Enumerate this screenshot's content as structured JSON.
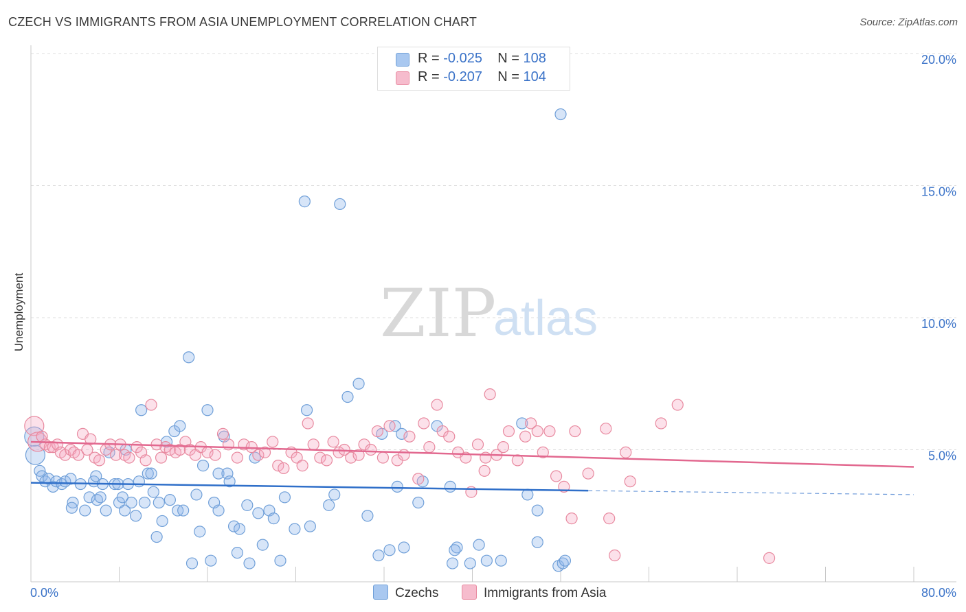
{
  "header": {
    "title": "CZECH VS IMMIGRANTS FROM ASIA UNEMPLOYMENT CORRELATION CHART",
    "source": "Source: ZipAtlas.com"
  },
  "watermark": {
    "zip": "ZIP",
    "atlas": "atlas"
  },
  "legend": {
    "rows": [
      {
        "r_label": "R = ",
        "r_value": "-0.025",
        "n_label": "N = ",
        "n_value": "108",
        "color": "#a9c8f0",
        "border": "#6f9fd8"
      },
      {
        "r_label": "R = ",
        "r_value": "-0.207",
        "n_label": "N = ",
        "n_value": "104",
        "color": "#f6bccd",
        "border": "#e8899f"
      }
    ]
  },
  "bottom_legend": [
    {
      "label": "Czechs",
      "color": "#a9c8f0",
      "border": "#6f9fd8"
    },
    {
      "label": "Immigrants from Asia",
      "color": "#f6bccd",
      "border": "#e8899f"
    }
  ],
  "colors": {
    "czech_fill": "rgba(140,180,235,0.35)",
    "czech_stroke": "#6f9fd8",
    "czech_line": "#2f6fc9",
    "asia_fill": "rgba(245,170,195,0.35)",
    "asia_stroke": "#e8899f",
    "asia_line": "#e2688f",
    "grid": "#dddddd",
    "tick_label": "#3b73c8"
  },
  "chart_data": {
    "type": "scatter",
    "title": "CZECH VS IMMIGRANTS FROM ASIA UNEMPLOYMENT CORRELATION CHART",
    "xlabel": "",
    "ylabel": "Unemployment",
    "xlim": [
      0,
      80
    ],
    "ylim": [
      0,
      20
    ],
    "x_tick_labels": [
      "0.0%",
      "80.0%"
    ],
    "y_ticks": [
      5,
      10,
      15,
      20
    ],
    "y_tick_labels": [
      "5.0%",
      "10.0%",
      "15.0%",
      "20.0%"
    ],
    "grid": true,
    "legend_position": "top-center",
    "series": [
      {
        "name": "Czechs",
        "r": -0.025,
        "n": 108,
        "trend": {
          "x": [
            0,
            50.5
          ],
          "y": [
            3.75,
            3.45
          ],
          "dashed_to": [
            80,
            3.3
          ]
        },
        "points": [
          [
            0.3,
            5.5
          ],
          [
            0.4,
            4.8
          ],
          [
            0.8,
            4.2
          ],
          [
            1.0,
            4.0
          ],
          [
            1.3,
            3.8
          ],
          [
            1.6,
            3.9
          ],
          [
            2.0,
            3.6
          ],
          [
            2.3,
            3.8
          ],
          [
            2.8,
            3.7
          ],
          [
            3.1,
            3.8
          ],
          [
            3.6,
            3.9
          ],
          [
            3.8,
            3.0
          ],
          [
            3.7,
            2.8
          ],
          [
            4.5,
            3.7
          ],
          [
            4.9,
            2.7
          ],
          [
            5.3,
            3.2
          ],
          [
            5.7,
            3.8
          ],
          [
            5.9,
            4.0
          ],
          [
            6.0,
            3.1
          ],
          [
            6.3,
            3.2
          ],
          [
            6.5,
            3.7
          ],
          [
            6.8,
            2.7
          ],
          [
            7.1,
            4.9
          ],
          [
            7.6,
            3.7
          ],
          [
            7.9,
            3.7
          ],
          [
            8.0,
            3.0
          ],
          [
            8.3,
            3.2
          ],
          [
            8.5,
            2.7
          ],
          [
            8.6,
            5.0
          ],
          [
            8.8,
            3.7
          ],
          [
            9.1,
            3.0
          ],
          [
            9.5,
            2.5
          ],
          [
            9.8,
            3.8
          ],
          [
            10.0,
            6.5
          ],
          [
            10.3,
            3.0
          ],
          [
            10.6,
            4.1
          ],
          [
            10.9,
            4.1
          ],
          [
            11.1,
            3.4
          ],
          [
            11.4,
            1.7
          ],
          [
            11.6,
            3.0
          ],
          [
            11.9,
            2.3
          ],
          [
            12.3,
            5.3
          ],
          [
            12.6,
            3.1
          ],
          [
            13.0,
            5.7
          ],
          [
            13.3,
            2.7
          ],
          [
            13.5,
            5.9
          ],
          [
            13.8,
            2.7
          ],
          [
            14.3,
            8.5
          ],
          [
            14.6,
            0.7
          ],
          [
            15.0,
            3.3
          ],
          [
            15.3,
            1.9
          ],
          [
            15.6,
            4.4
          ],
          [
            16.0,
            6.5
          ],
          [
            16.3,
            0.8
          ],
          [
            16.6,
            3.0
          ],
          [
            17.0,
            4.1
          ],
          [
            17.0,
            2.7
          ],
          [
            17.5,
            5.5
          ],
          [
            17.8,
            4.1
          ],
          [
            18.0,
            3.8
          ],
          [
            18.4,
            2.1
          ],
          [
            18.7,
            1.1
          ],
          [
            18.9,
            2.0
          ],
          [
            19.6,
            2.9
          ],
          [
            19.8,
            0.7
          ],
          [
            20.3,
            4.7
          ],
          [
            20.6,
            2.6
          ],
          [
            21.0,
            1.4
          ],
          [
            21.6,
            2.7
          ],
          [
            22.0,
            2.4
          ],
          [
            22.6,
            0.8
          ],
          [
            23.0,
            3.2
          ],
          [
            23.9,
            2.0
          ],
          [
            24.8,
            14.4
          ],
          [
            25.0,
            6.5
          ],
          [
            25.3,
            2.1
          ],
          [
            27.0,
            2.9
          ],
          [
            27.5,
            3.3
          ],
          [
            28.0,
            14.3
          ],
          [
            28.7,
            7.0
          ],
          [
            29.7,
            7.5
          ],
          [
            30.5,
            2.5
          ],
          [
            31.5,
            1.0
          ],
          [
            31.8,
            5.6
          ],
          [
            32.5,
            1.2
          ],
          [
            33.2,
            3.6
          ],
          [
            33.6,
            5.6
          ],
          [
            33.8,
            1.3
          ],
          [
            35.1,
            3.0
          ],
          [
            35.5,
            3.8
          ],
          [
            36.8,
            5.9
          ],
          [
            38.2,
            0.7
          ],
          [
            38.0,
            3.6
          ],
          [
            38.6,
            1.3
          ],
          [
            39.8,
            0.7
          ],
          [
            40.6,
            1.4
          ],
          [
            41.3,
            0.8
          ],
          [
            42.6,
            0.8
          ],
          [
            44.5,
            6.0
          ],
          [
            45.0,
            3.3
          ],
          [
            45.9,
            1.5
          ],
          [
            45.9,
            2.7
          ],
          [
            47.8,
            0.6
          ],
          [
            48.0,
            17.7
          ],
          [
            48.2,
            0.7
          ],
          [
            48.4,
            0.8
          ],
          [
            38.4,
            1.2
          ],
          [
            33.0,
            5.9
          ]
        ]
      },
      {
        "name": "Immigrants from Asia",
        "r": -0.207,
        "n": 104,
        "trend": {
          "x": [
            0,
            80
          ],
          "y": [
            5.3,
            4.35
          ]
        },
        "points": [
          [
            0.3,
            5.9
          ],
          [
            0.6,
            5.3
          ],
          [
            1.0,
            5.5
          ],
          [
            1.3,
            5.2
          ],
          [
            1.7,
            5.1
          ],
          [
            2.0,
            5.1
          ],
          [
            2.4,
            5.2
          ],
          [
            2.7,
            4.9
          ],
          [
            3.1,
            4.8
          ],
          [
            3.6,
            5.0
          ],
          [
            3.9,
            4.9
          ],
          [
            4.3,
            4.8
          ],
          [
            4.7,
            5.6
          ],
          [
            5.1,
            5.0
          ],
          [
            5.4,
            5.4
          ],
          [
            5.8,
            4.7
          ],
          [
            6.2,
            4.6
          ],
          [
            6.8,
            5.0
          ],
          [
            7.2,
            5.2
          ],
          [
            7.7,
            4.8
          ],
          [
            8.1,
            5.2
          ],
          [
            8.5,
            4.8
          ],
          [
            8.9,
            4.7
          ],
          [
            9.6,
            5.1
          ],
          [
            10.0,
            4.9
          ],
          [
            10.4,
            4.6
          ],
          [
            10.9,
            6.7
          ],
          [
            11.4,
            5.2
          ],
          [
            11.8,
            4.7
          ],
          [
            12.2,
            5.1
          ],
          [
            12.6,
            5.0
          ],
          [
            13.1,
            4.9
          ],
          [
            13.5,
            5.0
          ],
          [
            14.0,
            5.3
          ],
          [
            14.4,
            5.0
          ],
          [
            14.9,
            4.8
          ],
          [
            15.4,
            5.1
          ],
          [
            16.0,
            4.9
          ],
          [
            16.7,
            4.8
          ],
          [
            17.4,
            5.6
          ],
          [
            17.9,
            5.2
          ],
          [
            18.7,
            4.7
          ],
          [
            19.3,
            5.2
          ],
          [
            20.0,
            5.1
          ],
          [
            20.6,
            4.8
          ],
          [
            21.2,
            4.9
          ],
          [
            21.9,
            5.3
          ],
          [
            22.4,
            4.4
          ],
          [
            22.9,
            4.3
          ],
          [
            23.6,
            4.9
          ],
          [
            24.1,
            4.7
          ],
          [
            24.6,
            4.4
          ],
          [
            25.1,
            6.0
          ],
          [
            25.6,
            5.2
          ],
          [
            26.2,
            4.7
          ],
          [
            26.8,
            4.6
          ],
          [
            27.4,
            5.3
          ],
          [
            27.9,
            4.9
          ],
          [
            28.4,
            5.0
          ],
          [
            29.0,
            4.7
          ],
          [
            29.7,
            4.8
          ],
          [
            30.2,
            5.2
          ],
          [
            30.8,
            5.0
          ],
          [
            31.4,
            5.7
          ],
          [
            31.9,
            4.7
          ],
          [
            32.5,
            5.9
          ],
          [
            33.2,
            4.6
          ],
          [
            33.8,
            4.8
          ],
          [
            34.3,
            5.5
          ],
          [
            35.1,
            3.9
          ],
          [
            35.6,
            6.0
          ],
          [
            36.1,
            5.1
          ],
          [
            36.8,
            6.7
          ],
          [
            37.3,
            5.7
          ],
          [
            37.9,
            5.5
          ],
          [
            38.7,
            4.9
          ],
          [
            39.4,
            4.7
          ],
          [
            39.9,
            3.4
          ],
          [
            40.5,
            5.2
          ],
          [
            41.1,
            4.2
          ],
          [
            41.6,
            7.1
          ],
          [
            42.2,
            4.8
          ],
          [
            42.8,
            5.1
          ],
          [
            43.3,
            5.7
          ],
          [
            44.1,
            4.6
          ],
          [
            44.8,
            5.5
          ],
          [
            45.3,
            6.0
          ],
          [
            45.9,
            5.7
          ],
          [
            46.4,
            4.9
          ],
          [
            47.0,
            5.7
          ],
          [
            47.6,
            4.0
          ],
          [
            48.3,
            3.6
          ],
          [
            49.0,
            2.4
          ],
          [
            49.3,
            5.7
          ],
          [
            50.5,
            4.1
          ],
          [
            52.1,
            5.8
          ],
          [
            52.4,
            2.4
          ],
          [
            52.9,
            1.0
          ],
          [
            53.9,
            4.9
          ],
          [
            54.3,
            3.8
          ],
          [
            57.1,
            6.0
          ],
          [
            58.6,
            6.7
          ],
          [
            66.9,
            0.9
          ],
          [
            41.2,
            4.7
          ]
        ]
      }
    ]
  }
}
